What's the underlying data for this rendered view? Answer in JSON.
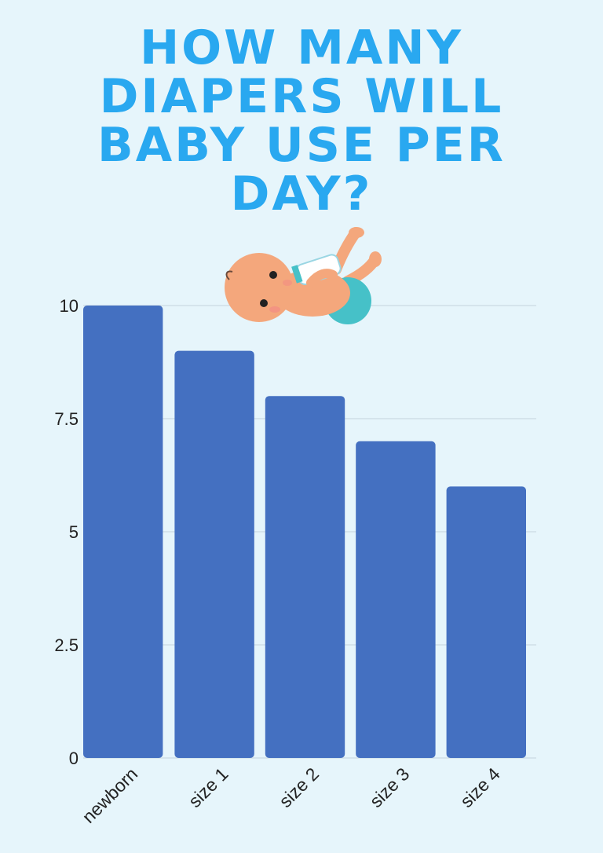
{
  "title": "HOW MANY DIAPERS WILL BABY USE PER DAY?",
  "colors": {
    "background": "#e6f5fb",
    "title": "#29a8f0",
    "bar": "#4470c1",
    "gridline": "#c4d3dd"
  },
  "illustration": "baby-drinking-bottle-icon",
  "chart_data": {
    "type": "bar",
    "categories": [
      "newborn",
      "size 1",
      "size 2",
      "size 3",
      "size 4"
    ],
    "values": [
      10,
      9,
      8,
      7,
      6
    ],
    "yticks": [
      "0",
      "2.5",
      "5",
      "7.5",
      "10"
    ],
    "ylim": [
      0,
      10
    ],
    "grid": true,
    "legend": "none",
    "xlabel": "",
    "ylabel": ""
  }
}
